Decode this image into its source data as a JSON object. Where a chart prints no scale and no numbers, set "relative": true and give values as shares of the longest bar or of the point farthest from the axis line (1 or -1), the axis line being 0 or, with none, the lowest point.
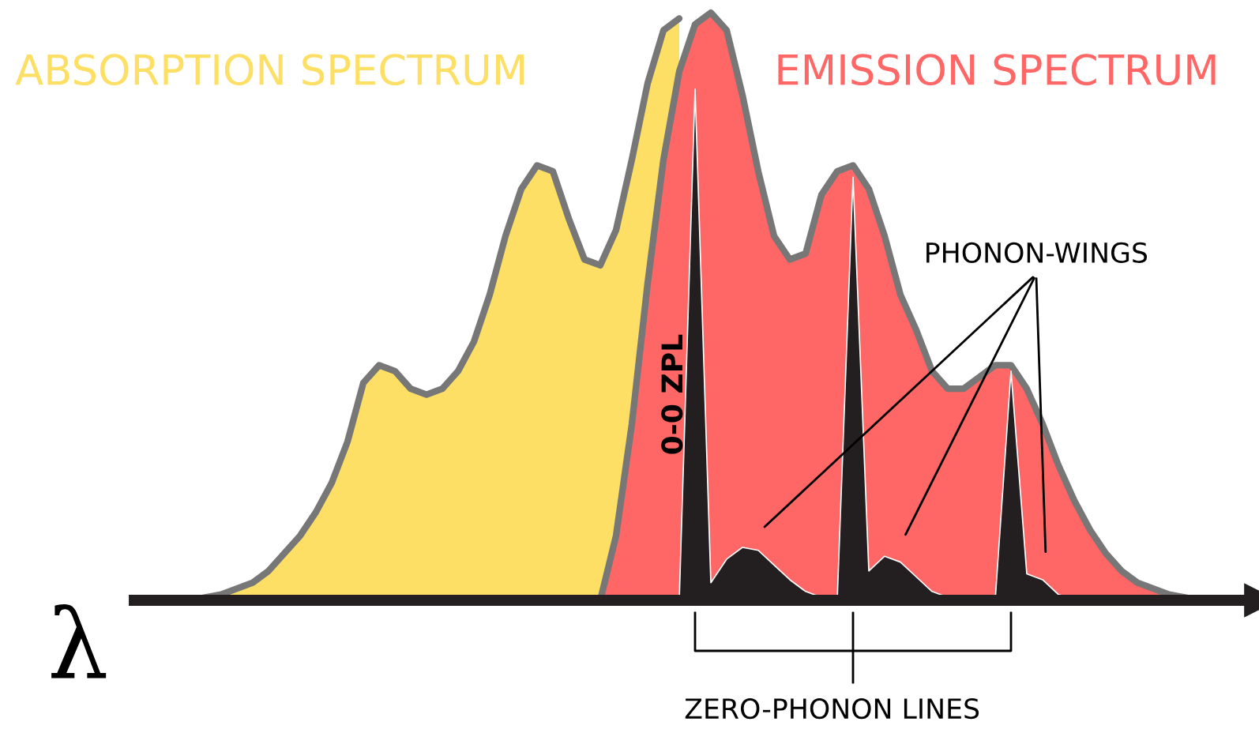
{
  "chart_data": {
    "type": "area",
    "relative": true,
    "xlabel": "λ",
    "categories": [
      null,
      null,
      null,
      null,
      null,
      null,
      null,
      null,
      null,
      null,
      null,
      null,
      null,
      null,
      null,
      null,
      null,
      null,
      null,
      null,
      null,
      null,
      null,
      null,
      null,
      null,
      null,
      null,
      null,
      null,
      null,
      null,
      null,
      null,
      null,
      null,
      null,
      null,
      null,
      null,
      null,
      null,
      null,
      null,
      null,
      null,
      null,
      null,
      null,
      null,
      null,
      null,
      null,
      null,
      null,
      null,
      null,
      null,
      null,
      null,
      null,
      null,
      null,
      null,
      null,
      null,
      null,
      null,
      null,
      null,
      null
    ],
    "series": [
      {
        "name": "ABSORPTION SPECTRUM",
        "color": "#fddf66",
        "values": [
          0,
          0,
          0,
          0,
          0.005,
          0.01,
          0.02,
          0.03,
          0.05,
          0.08,
          0.11,
          0.15,
          0.2,
          0.27,
          0.37,
          0.4,
          0.39,
          0.36,
          0.35,
          0.36,
          0.39,
          0.44,
          0.52,
          0.62,
          0.7,
          0.74,
          0.73,
          0.65,
          0.58,
          0.57,
          0.63,
          0.75,
          0.88,
          0.97,
          0.99,
          null,
          null,
          null,
          null,
          null,
          null,
          null,
          null,
          null,
          null,
          null,
          null,
          null,
          null,
          null,
          null,
          null,
          null,
          null,
          null,
          null,
          null,
          null,
          null,
          null,
          null,
          null,
          null,
          null,
          null,
          null,
          null,
          null,
          null,
          null,
          null
        ]
      },
      {
        "name": "EMISSION SPECTRUM",
        "color": "#ff6666",
        "values": [
          null,
          null,
          null,
          null,
          null,
          null,
          null,
          null,
          null,
          null,
          null,
          null,
          null,
          null,
          null,
          null,
          null,
          null,
          null,
          null,
          null,
          null,
          null,
          null,
          null,
          null,
          null,
          null,
          null,
          0,
          0.11,
          0.3,
          0.54,
          0.75,
          0.9,
          0.98,
          1.0,
          0.97,
          0.86,
          0.73,
          0.62,
          0.58,
          0.59,
          0.69,
          0.73,
          0.74,
          0.7,
          0.62,
          0.52,
          0.46,
          0.39,
          0.36,
          0.36,
          0.38,
          0.4,
          0.4,
          0.36,
          0.3,
          0.23,
          0.17,
          0.12,
          0.08,
          0.05,
          0.03,
          0.02,
          0.01,
          0.005,
          0,
          null,
          null,
          null
        ]
      },
      {
        "color": "#231f20",
        "values": [
          null,
          null,
          null,
          null,
          null,
          null,
          null,
          null,
          null,
          null,
          null,
          null,
          null,
          null,
          null,
          null,
          null,
          null,
          null,
          null,
          null,
          null,
          null,
          null,
          null,
          null,
          null,
          null,
          null,
          null,
          null,
          null,
          null,
          null,
          0,
          0.87,
          0.03,
          0.07,
          0.09,
          0.085,
          0.06,
          0.035,
          0.015,
          0.005,
          0,
          0.72,
          0.05,
          0.075,
          0.065,
          0.04,
          0.015,
          0.005,
          0,
          0,
          0,
          0.39,
          0.045,
          0.035,
          0.01,
          0,
          null,
          null,
          null,
          null,
          null,
          null,
          null,
          null,
          null,
          null,
          null
        ]
      }
    ],
    "annotations": [
      "PHONON-WINGS",
      "0-0 ZPL",
      "ZERO-PHONON LINES"
    ]
  }
}
